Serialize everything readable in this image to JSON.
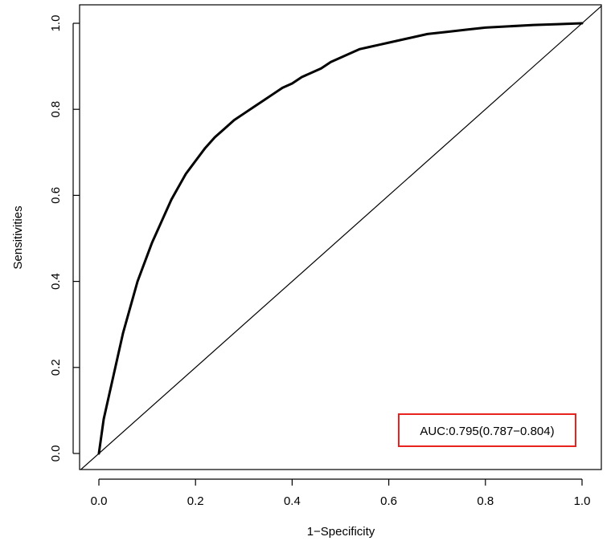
{
  "chart_data": {
    "type": "line",
    "title": "",
    "xlabel": "1−Specificity",
    "ylabel": "Sensitivities",
    "xlim": [
      0.0,
      1.0
    ],
    "ylim": [
      0.0,
      1.0
    ],
    "xticks": [
      "0.0",
      "0.2",
      "0.4",
      "0.6",
      "0.8",
      "1.0"
    ],
    "yticks": [
      "0.0",
      "0.2",
      "0.4",
      "0.6",
      "0.8",
      "1.0"
    ],
    "grid": false,
    "annotation": "AUC:0.795(0.787−0.804)",
    "annotation_border_color": "#e8231f",
    "series": [
      {
        "x": [
          0.0,
          0.005,
          0.01,
          0.02,
          0.03,
          0.04,
          0.05,
          0.06,
          0.07,
          0.08,
          0.09,
          0.1,
          0.11,
          0.12,
          0.13,
          0.14,
          0.15,
          0.16,
          0.17,
          0.18,
          0.19,
          0.2,
          0.22,
          0.24,
          0.26,
          0.28,
          0.3,
          0.32,
          0.34,
          0.36,
          0.38,
          0.4,
          0.42,
          0.44,
          0.46,
          0.48,
          0.5,
          0.52,
          0.54,
          0.56,
          0.58,
          0.6,
          0.64,
          0.68,
          0.72,
          0.76,
          0.8,
          0.85,
          0.9,
          0.95,
          1.0
        ],
        "y": [
          0.0,
          0.04,
          0.08,
          0.13,
          0.18,
          0.23,
          0.28,
          0.32,
          0.36,
          0.4,
          0.43,
          0.46,
          0.49,
          0.515,
          0.54,
          0.565,
          0.59,
          0.61,
          0.63,
          0.65,
          0.665,
          0.68,
          0.71,
          0.735,
          0.755,
          0.775,
          0.79,
          0.805,
          0.82,
          0.835,
          0.85,
          0.86,
          0.875,
          0.885,
          0.895,
          0.91,
          0.92,
          0.93,
          0.94,
          0.945,
          0.95,
          0.955,
          0.965,
          0.975,
          0.98,
          0.985,
          0.99,
          0.993,
          0.996,
          0.998,
          1.0
        ]
      },
      {
        "x": [
          -0.04,
          1.04
        ],
        "y": [
          -0.04,
          1.04
        ]
      }
    ]
  }
}
